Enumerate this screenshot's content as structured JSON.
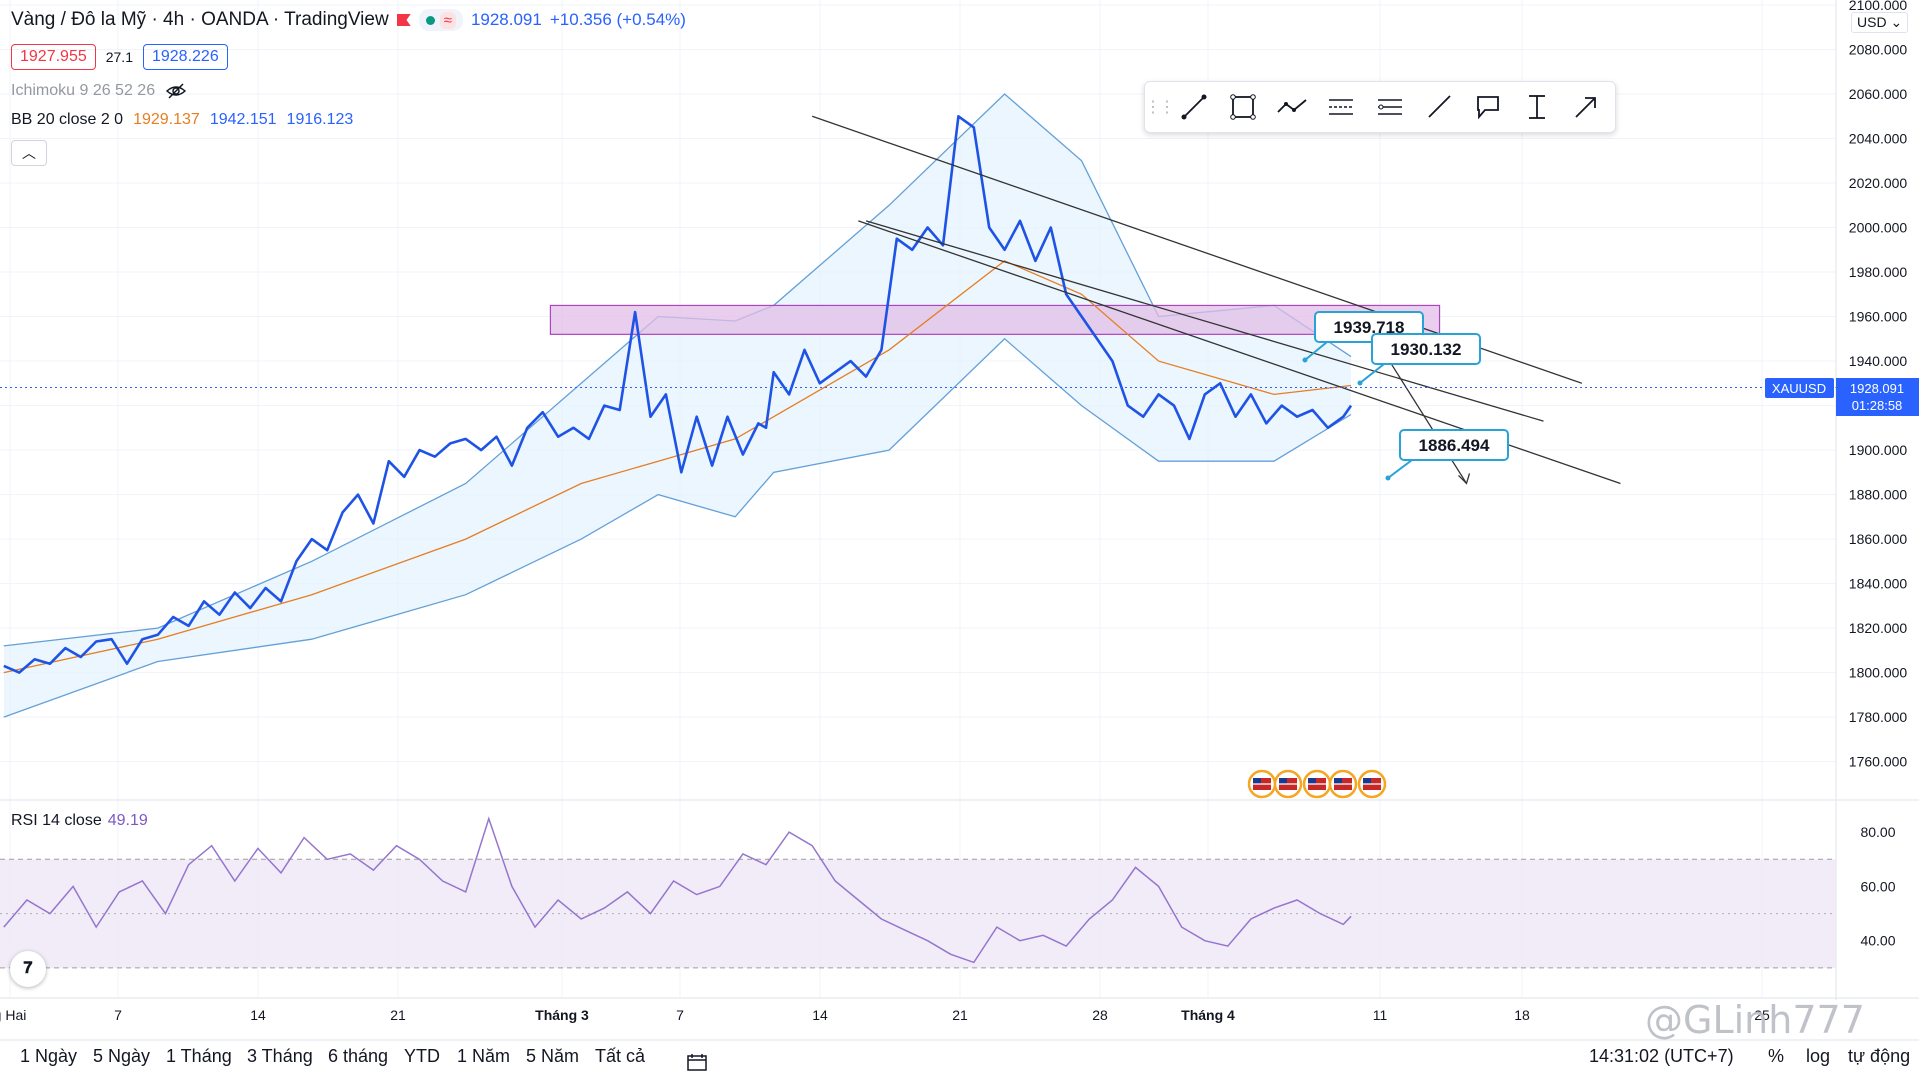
{
  "header": {
    "title": "Vàng / Đô la Mỹ · 4h · OANDA · TradingView",
    "last_price": "1928.091",
    "change": "+10.356 (+0.54%)",
    "bid": "1927.955",
    "spread": "27.1",
    "ask": "1928.226"
  },
  "indicators": {
    "ichimoku": "Ichimoku 9 26 52 26",
    "bb_label": "BB 20 close 2 0",
    "bb_basis": "1929.137",
    "bb_upper": "1942.151",
    "bb_lower": "1916.123",
    "rsi_label": "RSI 14 close",
    "rsi_value": "49.19"
  },
  "currency": "USD",
  "symbol_tag": "XAUUSD",
  "price_tag": "1928.091",
  "countdown": "01:28:58",
  "price_axis": [
    "2100.000",
    "2080.000",
    "2060.000",
    "2040.000",
    "2020.000",
    "2000.000",
    "1980.000",
    "1960.000",
    "1940.000",
    "1920.000",
    "1900.000",
    "1880.000",
    "1860.000",
    "1840.000",
    "1820.000",
    "1800.000",
    "1780.000",
    "1760.000"
  ],
  "rsi_axis": [
    "80.00",
    "60.00",
    "40.00"
  ],
  "time_axis": [
    "g Hai",
    "7",
    "14",
    "21",
    "Tháng 3",
    "7",
    "14",
    "21",
    "28",
    "Tháng 4",
    "11",
    "18",
    "25"
  ],
  "callouts": [
    "1939.718",
    "1930.132",
    "1886.494"
  ],
  "ranges": [
    "1 Ngày",
    "5 Ngày",
    "1 Tháng",
    "3 Tháng",
    "6 tháng",
    "YTD",
    "1 Năm",
    "5 Năm",
    "Tất cả"
  ],
  "clock": "14:31:02 (UTC+7)",
  "right_buttons": [
    "%",
    "log",
    "tự động"
  ],
  "watermark": "@GLinh777",
  "toolbar_tools": [
    "trend-line-icon",
    "rectangle-icon",
    "path-icon",
    "parallel-channel-icon",
    "fib-retracement-icon",
    "ray-icon",
    "callout-icon",
    "price-range-icon",
    "arrow-icon"
  ],
  "chart_data": {
    "type": "line",
    "title": "Vàng / Đô la Mỹ",
    "xlabel": "",
    "ylabel": "",
    "ylim": [
      1745,
      2100
    ],
    "x_ticks": [
      "g Hai",
      "7",
      "14",
      "21",
      "Tháng 3",
      "7",
      "14",
      "21",
      "28",
      "Tháng 4",
      "11",
      "18",
      "25"
    ],
    "series": [
      {
        "name": "XAUUSD",
        "color": "#1e53e5",
        "x": [
          0,
          4,
          8,
          12,
          16,
          20,
          24,
          28,
          32,
          36,
          40,
          44,
          48,
          52,
          56,
          60,
          64,
          68,
          72,
          76,
          80,
          84,
          88,
          92,
          96,
          100,
          104,
          108,
          112,
          116,
          120,
          124,
          128,
          132,
          136,
          140,
          144,
          148,
          152,
          156,
          160,
          164,
          168,
          172,
          176,
          180,
          184,
          188,
          192,
          196,
          198,
          200,
          204,
          208,
          212,
          216,
          220,
          224,
          228,
          232,
          236,
          240,
          244,
          248,
          252,
          256,
          260,
          264,
          268,
          272,
          276,
          280,
          284,
          288,
          292,
          296,
          300,
          304,
          308,
          312,
          316,
          320,
          324,
          328,
          332,
          336,
          340,
          344,
          348,
          350
        ],
        "y": [
          1803,
          1800,
          1806,
          1804,
          1811,
          1807,
          1814,
          1815,
          1804,
          1815,
          1817,
          1825,
          1821,
          1832,
          1826,
          1836,
          1829,
          1838,
          1832,
          1850,
          1860,
          1855,
          1872,
          1880,
          1867,
          1895,
          1888,
          1900,
          1897,
          1903,
          1905,
          1900,
          1906,
          1893,
          1910,
          1917,
          1906,
          1910,
          1905,
          1920,
          1918,
          1962,
          1915,
          1925,
          1890,
          1915,
          1893,
          1915,
          1898,
          1912,
          1910,
          1935,
          1925,
          1945,
          1930,
          1935,
          1940,
          1933,
          1945,
          1995,
          1990,
          2000,
          1992,
          2050,
          2045,
          2000,
          1990,
          2003,
          1985,
          2000,
          1970,
          1960,
          1950,
          1940,
          1920,
          1915,
          1925,
          1920,
          1905,
          1925,
          1930,
          1915,
          1925,
          1912,
          1920,
          1915,
          1918,
          1910,
          1915,
          1920
        ]
      },
      {
        "name": "BB basis",
        "color": "#e67e22",
        "x": [
          0,
          40,
          80,
          120,
          150,
          170,
          190,
          200,
          230,
          260,
          280,
          300,
          330,
          350
        ],
        "y": [
          1800,
          1815,
          1835,
          1860,
          1885,
          1895,
          1905,
          1915,
          1945,
          1985,
          1970,
          1940,
          1925,
          1929
        ]
      }
    ],
    "bands": {
      "upper": {
        "x": [
          0,
          40,
          80,
          120,
          150,
          170,
          190,
          200,
          230,
          260,
          280,
          300,
          330,
          350
        ],
        "y": [
          1812,
          1820,
          1850,
          1885,
          1930,
          1960,
          1958,
          1965,
          2010,
          2060,
          2030,
          1960,
          1965,
          1942
        ]
      },
      "lower": {
        "x": [
          0,
          40,
          80,
          120,
          150,
          170,
          190,
          200,
          230,
          260,
          280,
          300,
          330,
          350
        ],
        "y": [
          1780,
          1805,
          1815,
          1835,
          1860,
          1880,
          1870,
          1890,
          1900,
          1950,
          1920,
          1895,
          1895,
          1916
        ]
      }
    },
    "zone": {
      "x": [
        142,
        373
      ],
      "y": [
        1952,
        1965
      ]
    },
    "trend_lines": [
      {
        "x": [
          210,
          410
        ],
        "y": [
          2050,
          1930
        ]
      },
      {
        "x": [
          224,
          400
        ],
        "y": [
          2003,
          1913
        ]
      },
      {
        "x": [
          222,
          420
        ],
        "y": [
          2003,
          1885
        ]
      }
    ],
    "projection": {
      "x": [
        360,
        380
      ],
      "y": [
        1940,
        1885
      ]
    },
    "rsi": {
      "name": "RSI 14",
      "color": "#7e57c2",
      "ylim": [
        20,
        90
      ],
      "bands": [
        30,
        50,
        70
      ],
      "x": [
        0,
        6,
        12,
        18,
        24,
        30,
        36,
        42,
        48,
        54,
        60,
        66,
        72,
        78,
        84,
        90,
        96,
        102,
        108,
        114,
        120,
        126,
        132,
        138,
        144,
        150,
        156,
        162,
        168,
        174,
        180,
        186,
        192,
        198,
        204,
        210,
        216,
        222,
        228,
        234,
        240,
        246,
        252,
        258,
        264,
        270,
        276,
        282,
        288,
        294,
        300,
        306,
        312,
        318,
        324,
        330,
        336,
        342,
        348,
        350
      ],
      "y": [
        45,
        55,
        50,
        60,
        45,
        58,
        62,
        50,
        68,
        75,
        62,
        74,
        65,
        78,
        70,
        72,
        66,
        75,
        70,
        62,
        58,
        85,
        60,
        45,
        55,
        48,
        52,
        58,
        50,
        62,
        57,
        60,
        72,
        68,
        80,
        75,
        62,
        55,
        48,
        44,
        40,
        35,
        32,
        45,
        40,
        42,
        38,
        48,
        55,
        67,
        60,
        45,
        40,
        38,
        48,
        52,
        55,
        50,
        46,
        49
      ]
    }
  }
}
